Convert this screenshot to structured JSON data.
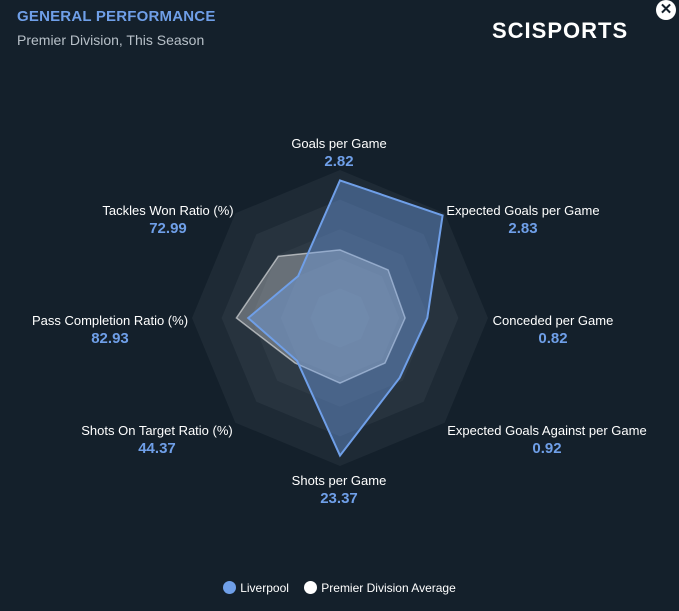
{
  "header": {
    "title": "GENERAL PERFORMANCE",
    "subtitle": "Premier Division, This Season",
    "logo": "SCISPORTS",
    "close_icon": "close-icon"
  },
  "chart_data": {
    "type": "radar",
    "axes": [
      {
        "label": "Goals per Game",
        "value": "2.82",
        "liverpool": 0.93,
        "average": 0.46
      },
      {
        "label": "Expected Goals per Game",
        "value": "2.83",
        "liverpool": 0.98,
        "average": 0.46
      },
      {
        "label": "Conceded per Game",
        "value": "0.82",
        "liverpool": 0.59,
        "average": 0.44
      },
      {
        "label": "Expected Goals Against per Game",
        "value": "0.92",
        "liverpool": 0.57,
        "average": 0.43
      },
      {
        "label": "Shots per Game",
        "value": "23.37",
        "liverpool": 0.93,
        "average": 0.44
      },
      {
        "label": "Shots On Target Ratio (%)",
        "value": "44.37",
        "liverpool": 0.41,
        "average": 0.43
      },
      {
        "label": "Pass Completion Ratio (%)",
        "value": "82.93",
        "liverpool": 0.62,
        "average": 0.7
      },
      {
        "label": "Tackles Won Ratio (%)",
        "value": "72.99",
        "liverpool": 0.4,
        "average": 0.59
      }
    ],
    "series": [
      {
        "name": "Liverpool",
        "color": "#6f9fe8"
      },
      {
        "name": "Premier Division Average",
        "color": "#ffffff"
      }
    ]
  },
  "legend": {
    "liverpool_label": "Liverpool",
    "average_label": "Premier Division Average"
  }
}
